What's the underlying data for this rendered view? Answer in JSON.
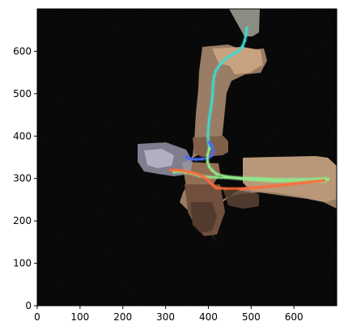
{
  "chart_data": {
    "type": "line",
    "title": "",
    "xlabel": "",
    "ylabel": "",
    "xlim": [
      0,
      700
    ],
    "ylim": [
      0,
      700
    ],
    "x_ticks": [
      0,
      100,
      200,
      300,
      400,
      500,
      600
    ],
    "y_ticks": [
      0,
      100,
      200,
      300,
      400,
      500,
      600
    ],
    "grid": false,
    "legend": "none",
    "background_image": "top-down 3D scan map of indoor corridors on black background",
    "colors": {
      "plot_background": "#000000",
      "axis": "#000000"
    },
    "series": [
      {
        "color": "#3fd9d0",
        "points": [
          [
            490,
            655
          ],
          [
            488,
            640
          ],
          [
            485,
            625
          ],
          [
            480,
            612
          ],
          [
            470,
            600
          ],
          [
            455,
            592
          ],
          [
            440,
            582
          ],
          [
            428,
            570
          ],
          [
            418,
            555
          ],
          [
            413,
            540
          ],
          [
            411,
            520
          ],
          [
            410,
            500
          ],
          [
            408,
            480
          ],
          [
            405,
            460
          ],
          [
            402,
            440
          ],
          [
            400,
            420
          ],
          [
            399,
            400
          ],
          [
            400,
            385
          ],
          [
            402,
            370
          ]
        ]
      },
      {
        "color": "#4a6cf0",
        "points": [
          [
            350,
            350
          ],
          [
            360,
            346
          ],
          [
            372,
            345
          ],
          [
            385,
            346
          ],
          [
            398,
            348
          ],
          [
            408,
            354
          ],
          [
            412,
            365
          ],
          [
            408,
            378
          ],
          [
            402,
            385
          ]
        ]
      },
      {
        "color": "#8fe68a",
        "points": [
          [
            402,
            370
          ],
          [
            398,
            355
          ],
          [
            398,
            340
          ],
          [
            402,
            328
          ],
          [
            410,
            318
          ],
          [
            420,
            310
          ],
          [
            440,
            305
          ],
          [
            470,
            302
          ],
          [
            520,
            300
          ],
          [
            570,
            298
          ],
          [
            620,
            298
          ],
          [
            655,
            299
          ],
          [
            675,
            300
          ],
          [
            680,
            298
          ],
          [
            672,
            293
          ],
          [
            650,
            293
          ],
          [
            600,
            293
          ],
          [
            550,
            294
          ],
          [
            500,
            297
          ],
          [
            440,
            302
          ],
          [
            405,
            303
          ],
          [
            380,
            306
          ],
          [
            360,
            312
          ],
          [
            345,
            315
          ],
          [
            330,
            316
          ],
          [
            320,
            315
          ]
        ]
      },
      {
        "color": "#ff6a38",
        "points": [
          [
            312,
            320
          ],
          [
            325,
            320
          ],
          [
            340,
            318
          ],
          [
            355,
            315
          ],
          [
            375,
            310
          ],
          [
            390,
            303
          ],
          [
            400,
            296
          ],
          [
            410,
            285
          ],
          [
            418,
            278
          ],
          [
            440,
            276
          ],
          [
            480,
            276
          ],
          [
            520,
            279
          ],
          [
            560,
            283
          ],
          [
            600,
            288
          ],
          [
            640,
            292
          ],
          [
            670,
            295
          ]
        ]
      }
    ]
  }
}
